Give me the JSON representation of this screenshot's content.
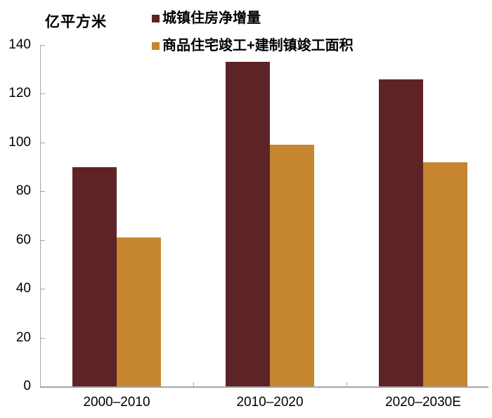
{
  "chart_data": {
    "type": "bar",
    "title": "",
    "ylabel": "亿平方米",
    "xlabel": "",
    "categories": [
      "2000–2010",
      "2010–2020",
      "2020–2030E"
    ],
    "series": [
      {
        "name": "城镇住房净增量",
        "color": "#5e2326",
        "values": [
          90,
          133,
          126
        ]
      },
      {
        "name": "商品住宅竣工+建制镇竣工面积",
        "color": "#c5862f",
        "values": [
          61,
          99,
          92
        ]
      }
    ],
    "ylim": [
      0,
      140
    ],
    "yticks": [
      0,
      20,
      40,
      60,
      80,
      100,
      120,
      140
    ],
    "grid": false,
    "legend_position": "top-left",
    "axis_color": "#a6a6a6",
    "text_color": "#000000"
  }
}
